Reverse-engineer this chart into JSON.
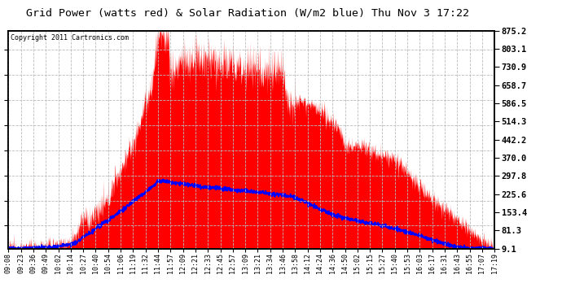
{
  "title": "Grid Power (watts red) & Solar Radiation (W/m2 blue) Thu Nov 3 17:22",
  "copyright_text": "Copyright 2011 Cartronics.com",
  "yticks": [
    9.1,
    81.3,
    153.4,
    225.6,
    297.8,
    370.0,
    442.2,
    514.3,
    586.5,
    658.7,
    730.9,
    803.1,
    875.2
  ],
  "ymin": 9.1,
  "ymax": 875.2,
  "bg_color": "#ffffff",
  "plot_bg_color": "#ffffff",
  "red_fill_color": "#ff0000",
  "blue_line_color": "#0000ff",
  "grid_color": "#bbbbbb",
  "border_color": "#000000",
  "x_labels": [
    "09:08",
    "09:23",
    "09:36",
    "09:49",
    "10:02",
    "10:14",
    "10:27",
    "10:40",
    "10:54",
    "11:06",
    "11:19",
    "11:32",
    "11:44",
    "11:57",
    "12:09",
    "12:21",
    "12:33",
    "12:45",
    "12:57",
    "13:09",
    "13:21",
    "13:34",
    "13:46",
    "13:58",
    "14:12",
    "14:24",
    "14:36",
    "14:50",
    "15:02",
    "15:15",
    "15:27",
    "15:40",
    "15:53",
    "16:03",
    "16:17",
    "16:31",
    "16:43",
    "16:55",
    "17:07",
    "17:19"
  ]
}
